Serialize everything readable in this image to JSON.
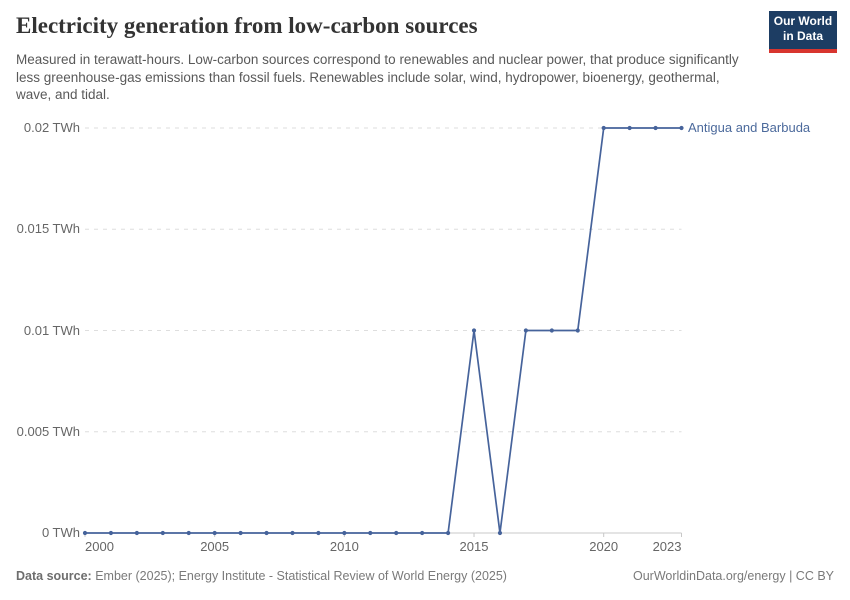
{
  "header": {
    "title": "Electricity generation from low-carbon sources",
    "subtitle": "Measured in terawatt-hours. Low-carbon sources correspond to renewables and nuclear power, that produce significantly less greenhouse-gas emissions than fossil fuels. Renewables include solar, wind, hydropower, bioenergy, geothermal, wave, and tidal.",
    "logo": {
      "line1": "Our World",
      "line2": "in Data",
      "bg_color": "#1d3d63",
      "accent_color": "#d8352f"
    }
  },
  "chart_data": {
    "type": "line",
    "title": "Electricity generation from low-carbon sources",
    "unit": "TWh",
    "x": [
      2000,
      2001,
      2002,
      2003,
      2004,
      2005,
      2006,
      2007,
      2008,
      2009,
      2010,
      2011,
      2012,
      2013,
      2014,
      2015,
      2016,
      2017,
      2018,
      2019,
      2020,
      2021,
      2022,
      2023
    ],
    "series": [
      {
        "name": "Antigua and Barbuda",
        "color": "#46639b",
        "values": [
          0,
          0,
          0,
          0,
          0,
          0,
          0,
          0,
          0,
          0,
          0,
          0,
          0,
          0,
          0,
          0.01,
          0,
          0.01,
          0.01,
          0.01,
          0.02,
          0.02,
          0.02,
          0.02
        ]
      }
    ],
    "xlim": [
      2000,
      2023
    ],
    "ylim": [
      0,
      0.02
    ],
    "x_ticks": [
      {
        "value": 2000,
        "label": "2000"
      },
      {
        "value": 2005,
        "label": "2005"
      },
      {
        "value": 2010,
        "label": "2010"
      },
      {
        "value": 2015,
        "label": "2015"
      },
      {
        "value": 2020,
        "label": "2020"
      },
      {
        "value": 2023,
        "label": "2023"
      }
    ],
    "y_ticks": [
      {
        "value": 0,
        "label": "0 TWh"
      },
      {
        "value": 0.005,
        "label": "0.005 TWh"
      },
      {
        "value": 0.01,
        "label": "0.01 TWh"
      },
      {
        "value": 0.015,
        "label": "0.015 TWh"
      },
      {
        "value": 0.02,
        "label": "0.02 TWh"
      }
    ],
    "grid": "horizontal-dashed",
    "legend_position": "end-of-line-label"
  },
  "footer": {
    "source_label": "Data source:",
    "source_text": "Ember (2025); Energy Institute - Statistical Review of World Energy (2025)",
    "rights": "OurWorldinData.org/energy | CC BY"
  }
}
